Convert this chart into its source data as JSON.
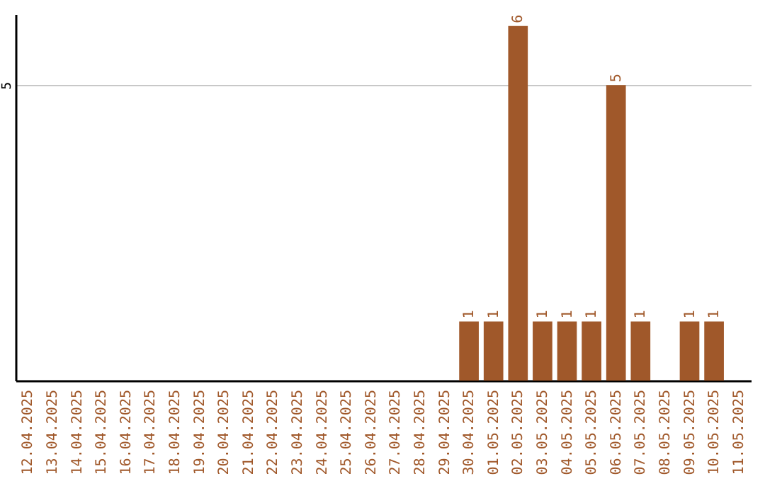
{
  "chart_data": {
    "type": "bar",
    "categories": [
      "12.04.2025",
      "13.04.2025",
      "14.04.2025",
      "15.04.2025",
      "16.04.2025",
      "17.04.2025",
      "18.04.2025",
      "19.04.2025",
      "20.04.2025",
      "21.04.2025",
      "22.04.2025",
      "23.04.2025",
      "24.04.2025",
      "25.04.2025",
      "26.04.2025",
      "27.04.2025",
      "28.04.2025",
      "29.04.2025",
      "30.04.2025",
      "01.05.2025",
      "02.05.2025",
      "03.05.2025",
      "04.05.2025",
      "05.05.2025",
      "06.05.2025",
      "07.05.2025",
      "08.05.2025",
      "09.05.2025",
      "10.05.2025",
      "11.05.2025"
    ],
    "values": [
      null,
      null,
      null,
      null,
      null,
      null,
      null,
      null,
      null,
      null,
      null,
      null,
      null,
      null,
      null,
      null,
      null,
      null,
      1,
      1,
      6,
      1,
      1,
      1,
      5,
      1,
      null,
      1,
      1,
      null
    ],
    "data_labels": true,
    "color": "#a0582a",
    "ylim": [
      0,
      6.2
    ],
    "yticks": [
      5
    ],
    "grid": "y"
  }
}
